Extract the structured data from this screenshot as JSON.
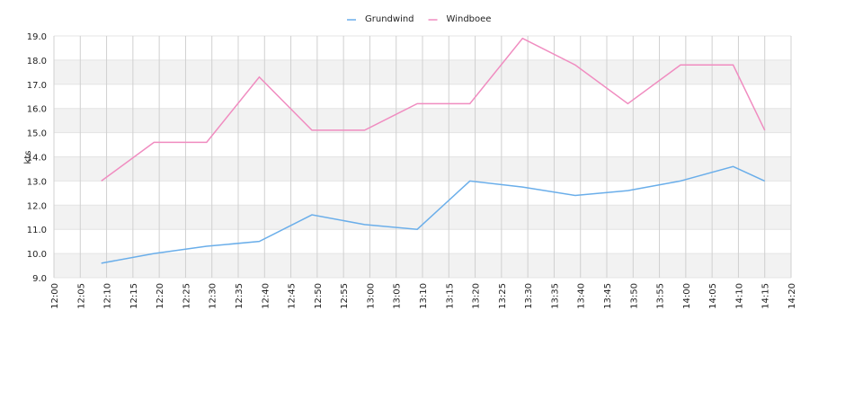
{
  "chart_data": {
    "type": "line",
    "y_label": "kts",
    "x": [
      "12:09",
      "12:19",
      "12:29",
      "12:39",
      "12:49",
      "12:59",
      "13:09",
      "13:19",
      "13:29",
      "13:39",
      "13:49",
      "13:59",
      "14:09",
      "14:15"
    ],
    "series": [
      {
        "name": "Grundwind",
        "color": "#6aaeea",
        "values": [
          9.6,
          10.0,
          10.3,
          10.5,
          11.6,
          11.2,
          11.0,
          13.0,
          12.75,
          12.4,
          12.6,
          13.0,
          13.6,
          13.0
        ]
      },
      {
        "name": "Windboee",
        "color": "#f08cc0",
        "values": [
          13.0,
          14.6,
          14.6,
          17.3,
          15.1,
          15.1,
          16.2,
          16.2,
          18.9,
          17.8,
          16.2,
          17.8,
          17.8,
          15.1
        ]
      }
    ],
    "xlim": [
      "12:00",
      "14:20"
    ],
    "xticks": [
      "12:00",
      "12:05",
      "12:10",
      "12:15",
      "12:20",
      "12:25",
      "12:30",
      "12:35",
      "12:40",
      "12:45",
      "12:50",
      "12:55",
      "13:00",
      "13:05",
      "13:10",
      "13:15",
      "13:20",
      "13:25",
      "13:30",
      "13:35",
      "13:40",
      "13:45",
      "13:50",
      "13:55",
      "14:00",
      "14:05",
      "14:10",
      "14:15",
      "14:20"
    ],
    "ylim": [
      9,
      19
    ],
    "yticks": [
      {
        "value": 9,
        "label": "9.0"
      },
      {
        "value": 10,
        "label": "10.0"
      },
      {
        "value": 11,
        "label": "11.0"
      },
      {
        "value": 12,
        "label": "12.0"
      },
      {
        "value": 13,
        "label": "13.0"
      },
      {
        "value": 14,
        "label": "14.0"
      },
      {
        "value": 15,
        "label": "15.0"
      },
      {
        "value": 16,
        "label": "16.0"
      },
      {
        "value": 17,
        "label": "17.0"
      },
      {
        "value": 18,
        "label": "18.0"
      },
      {
        "value": 19,
        "label": "19.0"
      }
    ],
    "grid": true,
    "legend": "top"
  }
}
